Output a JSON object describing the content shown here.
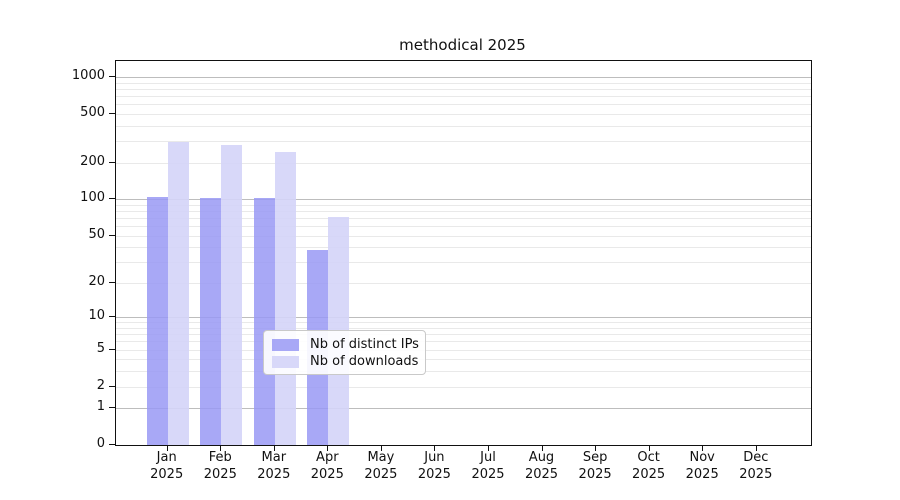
{
  "title": "methodical 2025",
  "colors": {
    "ips_bar": "#9999f4",
    "downloads_bar": "#d4d4f8",
    "grid_major": "#bdbdbd",
    "grid_minor": "#e9e9e9",
    "axis": "#111111",
    "background": "#ffffff"
  },
  "legend": {
    "entries": [
      "Nb of distinct IPs",
      "Nb of downloads"
    ]
  },
  "chart_data": {
    "type": "bar",
    "title": "methodical 2025",
    "categories": [
      "Jan 2025",
      "Feb 2025",
      "Mar 2025",
      "Apr 2025",
      "May 2025",
      "Jun 2025",
      "Jul 2025",
      "Aug 2025",
      "Sep 2025",
      "Oct 2025",
      "Nov 2025",
      "Dec 2025"
    ],
    "series": [
      {
        "name": "Nb of distinct IPs",
        "color": "#9999f4",
        "opacity": 0.85,
        "values": [
          104,
          103,
          102,
          38,
          0,
          0,
          0,
          0,
          0,
          0,
          0,
          0
        ]
      },
      {
        "name": "Nb of downloads",
        "color": "#d4d4f8",
        "opacity": 0.9,
        "values": [
          296,
          278,
          245,
          72,
          0,
          0,
          0,
          0,
          0,
          0,
          0,
          0
        ]
      }
    ],
    "xlabel": "",
    "ylabel": "",
    "yscale": "log1p",
    "y_tick_values": [
      0,
      1,
      2,
      5,
      10,
      20,
      50,
      100,
      200,
      500,
      1000
    ],
    "y_major_gridlines": [
      1,
      10,
      100,
      1000
    ],
    "ylim": [
      0,
      1327
    ],
    "grid": true,
    "legend_position": "lower center"
  }
}
